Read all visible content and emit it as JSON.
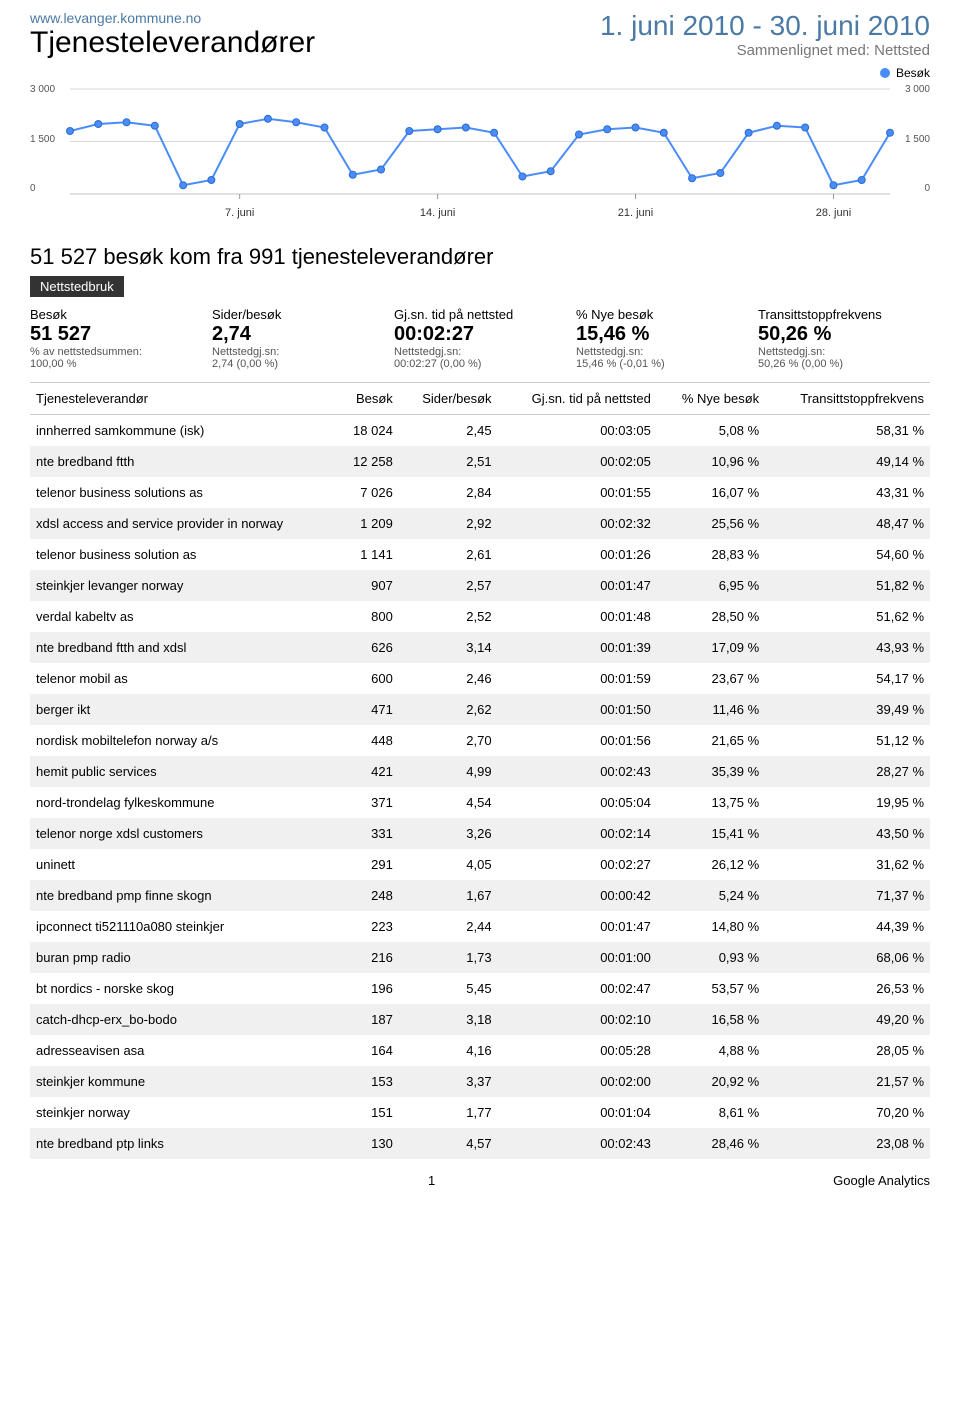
{
  "header": {
    "domain": "www.levanger.kommune.no",
    "title": "Tjenesteleverandører",
    "date_range": "1. juni 2010 - 30. juni 2010",
    "compare": "Sammenlignet med: Nettsted"
  },
  "legend": {
    "label": "Besøk",
    "color": "#4a8df8"
  },
  "chart": {
    "type": "line",
    "series_color": "#4a8df8",
    "marker_color": "#4a8df8",
    "marker_border": "#2b6cd0",
    "grid_color": "#d7d7d7",
    "background_color": "#ffffff",
    "ylim": [
      0,
      3000
    ],
    "yticks_left": [
      "3 000",
      "1 500",
      "0"
    ],
    "yticks_right": [
      "3 000",
      "1 500",
      "0"
    ],
    "x_labels": [
      "7. juni",
      "14. juni",
      "21. juni",
      "28. juni"
    ],
    "values": [
      1800,
      2000,
      2050,
      1950,
      250,
      400,
      2000,
      2150,
      2050,
      1900,
      550,
      700,
      1800,
      1850,
      1900,
      1750,
      500,
      650,
      1700,
      1850,
      1900,
      1750,
      450,
      600,
      1750,
      1950,
      1900,
      250,
      400,
      1750
    ]
  },
  "headline": "51 527 besøk kom fra 991 tjenesteleverandører",
  "badge": "Nettstedbruk",
  "metrics": [
    {
      "label": "Besøk",
      "value": "51 527",
      "sub1": "% av nettstedsummen:",
      "sub2": "100,00 %"
    },
    {
      "label": "Sider/besøk",
      "value": "2,74",
      "sub1": "Nettstedgj.sn:",
      "sub2": "2,74 (0,00 %)"
    },
    {
      "label": "Gj.sn. tid på nettsted",
      "value": "00:02:27",
      "sub1": "Nettstedgj.sn:",
      "sub2": "00:02:27 (0,00 %)"
    },
    {
      "label": "% Nye besøk",
      "value": "15,46 %",
      "sub1": "Nettstedgj.sn:",
      "sub2": "15,46 % (-0,01 %)"
    },
    {
      "label": "Transittstoppfrekvens",
      "value": "50,26 %",
      "sub1": "Nettstedgj.sn:",
      "sub2": "50,26 % (0,00 %)"
    }
  ],
  "table": {
    "columns": [
      "Tjenesteleverandør",
      "Besøk",
      "Sider/besøk",
      "Gj.sn. tid på nettsted",
      "% Nye besøk",
      "Transittstoppfrekvens"
    ],
    "rows": [
      [
        "innherred samkommune (isk)",
        "18 024",
        "2,45",
        "00:03:05",
        "5,08 %",
        "58,31 %"
      ],
      [
        "nte bredband ftth",
        "12 258",
        "2,51",
        "00:02:05",
        "10,96 %",
        "49,14 %"
      ],
      [
        "telenor business solutions as",
        "7 026",
        "2,84",
        "00:01:55",
        "16,07 %",
        "43,31 %"
      ],
      [
        "xdsl access and service provider in norway",
        "1 209",
        "2,92",
        "00:02:32",
        "25,56 %",
        "48,47 %"
      ],
      [
        "telenor business solution as",
        "1 141",
        "2,61",
        "00:01:26",
        "28,83 %",
        "54,60 %"
      ],
      [
        "steinkjer levanger norway",
        "907",
        "2,57",
        "00:01:47",
        "6,95 %",
        "51,82 %"
      ],
      [
        "verdal kabeltv as",
        "800",
        "2,52",
        "00:01:48",
        "28,50 %",
        "51,62 %"
      ],
      [
        "nte bredband ftth and xdsl",
        "626",
        "3,14",
        "00:01:39",
        "17,09 %",
        "43,93 %"
      ],
      [
        "telenor mobil as",
        "600",
        "2,46",
        "00:01:59",
        "23,67 %",
        "54,17 %"
      ],
      [
        "berger ikt",
        "471",
        "2,62",
        "00:01:50",
        "11,46 %",
        "39,49 %"
      ],
      [
        "nordisk mobiltelefon norway a/s",
        "448",
        "2,70",
        "00:01:56",
        "21,65 %",
        "51,12 %"
      ],
      [
        "hemit public services",
        "421",
        "4,99",
        "00:02:43",
        "35,39 %",
        "28,27 %"
      ],
      [
        "nord-trondelag fylkeskommune",
        "371",
        "4,54",
        "00:05:04",
        "13,75 %",
        "19,95 %"
      ],
      [
        "telenor norge xdsl customers",
        "331",
        "3,26",
        "00:02:14",
        "15,41 %",
        "43,50 %"
      ],
      [
        "uninett",
        "291",
        "4,05",
        "00:02:27",
        "26,12 %",
        "31,62 %"
      ],
      [
        "nte bredband pmp finne skogn",
        "248",
        "1,67",
        "00:00:42",
        "5,24 %",
        "71,37 %"
      ],
      [
        "ipconnect ti521110a080 steinkjer",
        "223",
        "2,44",
        "00:01:47",
        "14,80 %",
        "44,39 %"
      ],
      [
        "buran pmp radio",
        "216",
        "1,73",
        "00:01:00",
        "0,93 %",
        "68,06 %"
      ],
      [
        "bt nordics - norske skog",
        "196",
        "5,45",
        "00:02:47",
        "53,57 %",
        "26,53 %"
      ],
      [
        "catch-dhcp-erx_bo-bodo",
        "187",
        "3,18",
        "00:02:10",
        "16,58 %",
        "49,20 %"
      ],
      [
        "adresseavisen asa",
        "164",
        "4,16",
        "00:05:28",
        "4,88 %",
        "28,05 %"
      ],
      [
        "steinkjer kommune",
        "153",
        "3,37",
        "00:02:00",
        "20,92 %",
        "21,57 %"
      ],
      [
        "steinkjer norway",
        "151",
        "1,77",
        "00:01:04",
        "8,61 %",
        "70,20 %"
      ],
      [
        "nte bredband ptp links",
        "130",
        "4,57",
        "00:02:43",
        "28,46 %",
        "23,08 %"
      ]
    ]
  },
  "footer": {
    "page": "1",
    "brand": "Google Analytics"
  }
}
